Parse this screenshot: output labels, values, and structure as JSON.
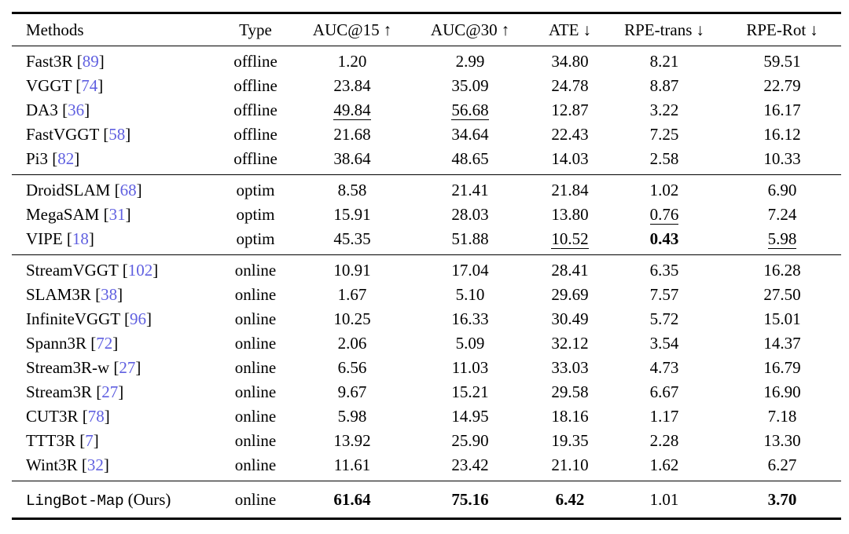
{
  "citation_color": "#5f5fe0",
  "table": {
    "columns": [
      {
        "id": "methods",
        "label": "Methods",
        "arrow": ""
      },
      {
        "id": "type",
        "label": "Type",
        "arrow": ""
      },
      {
        "id": "auc15",
        "label": "AUC@15",
        "arrow": "↑"
      },
      {
        "id": "auc30",
        "label": "AUC@30",
        "arrow": "↑"
      },
      {
        "id": "ate",
        "label": "ATE",
        "arrow": "↓"
      },
      {
        "id": "rpe-trans",
        "label": "RPE-trans",
        "arrow": "↓"
      },
      {
        "id": "rpe-rot",
        "label": "RPE-Rot",
        "arrow": "↓"
      }
    ],
    "groups": [
      {
        "name": "offline-methods",
        "rows": [
          {
            "method": "Fast3R",
            "cite": "89",
            "type": "offline",
            "values": [
              {
                "v": "1.20"
              },
              {
                "v": "2.99"
              },
              {
                "v": "34.80"
              },
              {
                "v": "8.21"
              },
              {
                "v": "59.51"
              }
            ]
          },
          {
            "method": "VGGT",
            "cite": "74",
            "type": "offline",
            "values": [
              {
                "v": "23.84"
              },
              {
                "v": "35.09"
              },
              {
                "v": "24.78"
              },
              {
                "v": "8.87"
              },
              {
                "v": "22.79"
              }
            ]
          },
          {
            "method": "DA3",
            "cite": "36",
            "type": "offline",
            "values": [
              {
                "v": "49.84",
                "style": "underline"
              },
              {
                "v": "56.68",
                "style": "underline"
              },
              {
                "v": "12.87"
              },
              {
                "v": "3.22"
              },
              {
                "v": "16.17"
              }
            ]
          },
          {
            "method": "FastVGGT",
            "cite": "58",
            "type": "offline",
            "values": [
              {
                "v": "21.68"
              },
              {
                "v": "34.64"
              },
              {
                "v": "22.43"
              },
              {
                "v": "7.25"
              },
              {
                "v": "16.12"
              }
            ]
          },
          {
            "method": "Pi3",
            "cite": "82",
            "type": "offline",
            "values": [
              {
                "v": "38.64"
              },
              {
                "v": "48.65"
              },
              {
                "v": "14.03"
              },
              {
                "v": "2.58"
              },
              {
                "v": "10.33"
              }
            ]
          }
        ]
      },
      {
        "name": "optimization-methods",
        "rows": [
          {
            "method": "DroidSLAM",
            "cite": "68",
            "type": "optim",
            "values": [
              {
                "v": "8.58"
              },
              {
                "v": "21.41"
              },
              {
                "v": "21.84"
              },
              {
                "v": "1.02"
              },
              {
                "v": "6.90"
              }
            ]
          },
          {
            "method": "MegaSAM",
            "cite": "31",
            "type": "optim",
            "values": [
              {
                "v": "15.91"
              },
              {
                "v": "28.03"
              },
              {
                "v": "13.80"
              },
              {
                "v": "0.76",
                "style": "underline"
              },
              {
                "v": "7.24"
              }
            ]
          },
          {
            "method": "VIPE",
            "cite": "18",
            "type": "optim",
            "values": [
              {
                "v": "45.35"
              },
              {
                "v": "51.88"
              },
              {
                "v": "10.52",
                "style": "underline"
              },
              {
                "v": "0.43",
                "style": "bold"
              },
              {
                "v": "5.98",
                "style": "underline"
              }
            ]
          }
        ]
      },
      {
        "name": "online-methods",
        "rows": [
          {
            "method": "StreamVGGT",
            "cite": "102",
            "type": "online",
            "values": [
              {
                "v": "10.91"
              },
              {
                "v": "17.04"
              },
              {
                "v": "28.41"
              },
              {
                "v": "6.35"
              },
              {
                "v": "16.28"
              }
            ]
          },
          {
            "method": "SLAM3R",
            "cite": "38",
            "type": "online",
            "values": [
              {
                "v": "1.67"
              },
              {
                "v": "5.10"
              },
              {
                "v": "29.69"
              },
              {
                "v": "7.57"
              },
              {
                "v": "27.50"
              }
            ]
          },
          {
            "method": "InfiniteVGGT",
            "cite": "96",
            "type": "online",
            "values": [
              {
                "v": "10.25"
              },
              {
                "v": "16.33"
              },
              {
                "v": "30.49"
              },
              {
                "v": "5.72"
              },
              {
                "v": "15.01"
              }
            ]
          },
          {
            "method": "Spann3R",
            "cite": "72",
            "type": "online",
            "values": [
              {
                "v": "2.06"
              },
              {
                "v": "5.09"
              },
              {
                "v": "32.12"
              },
              {
                "v": "3.54"
              },
              {
                "v": "14.37"
              }
            ]
          },
          {
            "method": "Stream3R-w",
            "cite": "27",
            "type": "online",
            "values": [
              {
                "v": "6.56"
              },
              {
                "v": "11.03"
              },
              {
                "v": "33.03"
              },
              {
                "v": "4.73"
              },
              {
                "v": "16.79"
              }
            ]
          },
          {
            "method": "Stream3R",
            "cite": "27",
            "type": "online",
            "values": [
              {
                "v": "9.67"
              },
              {
                "v": "15.21"
              },
              {
                "v": "29.58"
              },
              {
                "v": "6.67"
              },
              {
                "v": "16.90"
              }
            ]
          },
          {
            "method": "CUT3R",
            "cite": "78",
            "type": "online",
            "values": [
              {
                "v": "5.98"
              },
              {
                "v": "14.95"
              },
              {
                "v": "18.16"
              },
              {
                "v": "1.17"
              },
              {
                "v": "7.18"
              }
            ]
          },
          {
            "method": "TTT3R",
            "cite": "7",
            "type": "online",
            "values": [
              {
                "v": "13.92"
              },
              {
                "v": "25.90"
              },
              {
                "v": "19.35"
              },
              {
                "v": "2.28"
              },
              {
                "v": "13.30"
              }
            ]
          },
          {
            "method": "Wint3R",
            "cite": "32",
            "type": "online",
            "values": [
              {
                "v": "11.61"
              },
              {
                "v": "23.42"
              },
              {
                "v": "21.10"
              },
              {
                "v": "1.62"
              },
              {
                "v": "6.27"
              }
            ]
          }
        ]
      },
      {
        "name": "ours",
        "ours": true,
        "rows": [
          {
            "method": "LingBot-Map",
            "suffix": " (Ours)",
            "ours": true,
            "cite": null,
            "type": "online",
            "values": [
              {
                "v": "61.64",
                "style": "bold"
              },
              {
                "v": "75.16",
                "style": "bold"
              },
              {
                "v": "6.42",
                "style": "bold"
              },
              {
                "v": "1.01"
              },
              {
                "v": "3.70",
                "style": "bold"
              }
            ]
          }
        ]
      }
    ]
  }
}
